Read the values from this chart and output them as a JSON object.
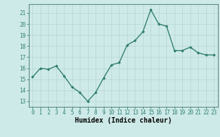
{
  "x": [
    0,
    1,
    2,
    3,
    4,
    5,
    6,
    7,
    8,
    9,
    10,
    11,
    12,
    13,
    14,
    15,
    16,
    17,
    18,
    19,
    20,
    21,
    22,
    23
  ],
  "y": [
    15.2,
    16.0,
    15.9,
    16.2,
    15.3,
    14.3,
    13.8,
    13.0,
    13.8,
    15.1,
    16.3,
    16.5,
    18.1,
    18.5,
    19.3,
    21.3,
    20.0,
    19.8,
    17.6,
    17.6,
    17.9,
    17.4,
    17.2,
    17.2
  ],
  "xlabel": "Humidex (Indice chaleur)",
  "ylim": [
    12.5,
    21.8
  ],
  "xlim": [
    -0.5,
    23.5
  ],
  "yticks": [
    13,
    14,
    15,
    16,
    17,
    18,
    19,
    20,
    21
  ],
  "xticks": [
    0,
    1,
    2,
    3,
    4,
    5,
    6,
    7,
    8,
    9,
    10,
    11,
    12,
    13,
    14,
    15,
    16,
    17,
    18,
    19,
    20,
    21,
    22,
    23
  ],
  "line_color": "#2e7d6e",
  "marker": "D",
  "marker_size": 1.8,
  "line_width": 1.0,
  "bg_color": "#ceeae8",
  "grid_color": "#b8d8d5",
  "tick_fontsize": 5.5,
  "xlabel_fontsize": 7.0,
  "spine_color": "#5a8a84"
}
